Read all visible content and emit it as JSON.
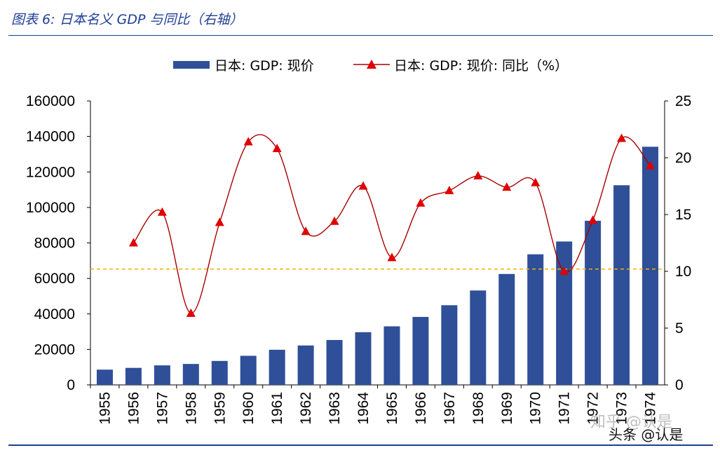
{
  "figure": {
    "title": "图表 6:  日本名义 GDP 与同比（右轴）",
    "watermark": "知乎 @认是",
    "source_tag": "头条 @认是"
  },
  "colors": {
    "title": "#1f3f95",
    "bar": "#2f4f99",
    "line": "#a80000",
    "marker": "#e10000",
    "reference_line": "#f0b400"
  },
  "chart_data": {
    "type": "bar+line",
    "categories": [
      "1955",
      "1956",
      "1957",
      "1958",
      "1959",
      "1960",
      "1961",
      "1962",
      "1963",
      "1964",
      "1965",
      "1966",
      "1967",
      "1968",
      "1969",
      "1970",
      "1971",
      "1972",
      "1973",
      "1974"
    ],
    "series": [
      {
        "name": "日本: GDP: 现价",
        "type": "bar",
        "axis": "left",
        "values": [
          8600,
          9600,
          11000,
          11800,
          13500,
          16400,
          19800,
          22200,
          25300,
          29700,
          33000,
          38300,
          44900,
          53200,
          62500,
          73600,
          80800,
          92500,
          112500,
          134200
        ]
      },
      {
        "name": "日本: GDP: 现价: 同比（%）",
        "type": "line",
        "axis": "right",
        "marker": "triangle",
        "values": [
          null,
          12.5,
          15.2,
          6.3,
          14.3,
          21.4,
          20.8,
          13.5,
          14.4,
          17.5,
          11.2,
          16.0,
          17.1,
          18.4,
          17.4,
          17.8,
          10.0,
          14.5,
          21.7,
          19.3
        ]
      }
    ],
    "reference_line": {
      "axis": "right",
      "value": 10.2,
      "style": "dashed"
    },
    "y_left": {
      "min": 0,
      "max": 160000,
      "ticks": [
        0,
        20000,
        40000,
        60000,
        80000,
        100000,
        120000,
        140000,
        160000
      ]
    },
    "y_right": {
      "min": 0,
      "max": 25,
      "ticks": [
        0,
        5,
        10,
        15,
        20,
        25
      ]
    },
    "legend": {
      "placement": "top"
    },
    "grid": false
  }
}
